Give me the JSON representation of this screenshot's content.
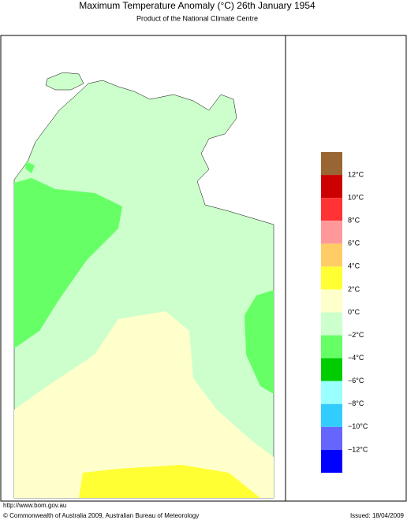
{
  "header": {
    "title": "Maximum Temperature Anomaly (°C)  26th January 1954",
    "subtitle": "Product of the National Climate Centre"
  },
  "legend": {
    "labels": [
      "12°C",
      "10°C",
      "8°C",
      "6°C",
      "4°C",
      "2°C",
      "0°C",
      "−2°C",
      "−4°C",
      "−6°C",
      "−8°C",
      "−10°C",
      "−12°C"
    ],
    "colors": [
      "#996633",
      "#cc0000",
      "#ff3333",
      "#ff9999",
      "#ffcc66",
      "#ffff33",
      "#ffffcc",
      "#ccffcc",
      "#66ff66",
      "#00cc00",
      "#99ffff",
      "#33ccff",
      "#6666ff",
      "#0000ff"
    ]
  },
  "footer": {
    "url": "http://www.bom.gov.au",
    "copyright": "© Commonwealth of Australia 2009, Australian Bureau of Meteorology",
    "issued": "Issued: 18/04/2009"
  }
}
